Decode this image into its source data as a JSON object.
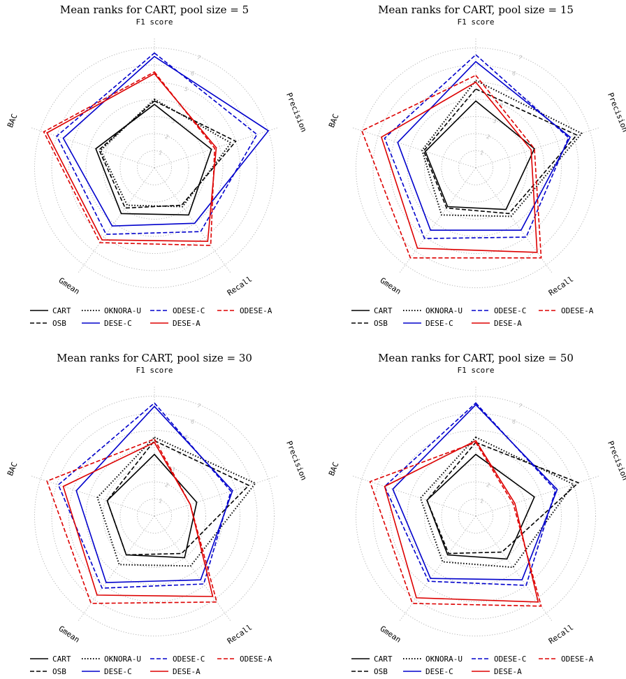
{
  "chart_data": [
    {
      "type": "radar",
      "title": "Mean ranks for CART, pool size = 5",
      "axes": [
        "F1 score",
        "Precision",
        "Recall",
        "Gmean",
        "BAC"
      ],
      "rlim": [
        0,
        7
      ],
      "rticks": [
        "1",
        "2",
        "3",
        "4",
        "5",
        "6",
        "7"
      ],
      "grid": true,
      "legend": "bottom",
      "series": [
        {
          "name": "CART",
          "color": "#000000",
          "style": "solid",
          "values": [
            3.7,
            3.5,
            3.4,
            3.3,
            3.6
          ]
        },
        {
          "name": "OSB",
          "color": "#000000",
          "style": "dashed",
          "values": [
            3.9,
            5.0,
            2.7,
            2.9,
            3.4
          ]
        },
        {
          "name": "OKNORA-U",
          "color": "#000000",
          "style": "dotted",
          "values": [
            4.0,
            4.7,
            2.8,
            2.7,
            3.3
          ]
        },
        {
          "name": "DESE-C",
          "color": "#0000cc",
          "style": "solid",
          "values": [
            6.5,
            7.0,
            4.0,
            4.2,
            5.6
          ]
        },
        {
          "name": "ODESE-C",
          "color": "#0000cc",
          "style": "dashed",
          "values": [
            6.7,
            6.3,
            4.6,
            4.8,
            6.0
          ]
        },
        {
          "name": "DESE-A",
          "color": "#dd0000",
          "style": "solid",
          "values": [
            5.5,
            3.8,
            5.3,
            5.2,
            6.6
          ]
        },
        {
          "name": "ODESE-A",
          "color": "#dd0000",
          "style": "dashed",
          "values": [
            5.6,
            3.7,
            5.6,
            5.4,
            6.8
          ]
        }
      ]
    },
    {
      "type": "radar",
      "title": "Mean ranks for CART, pool size = 15",
      "axes": [
        "F1 score",
        "Precision",
        "Recall",
        "Gmean",
        "BAC"
      ],
      "rlim": [
        0,
        7
      ],
      "rticks": [
        "1",
        "2",
        "3",
        "4",
        "5",
        "6",
        "7"
      ],
      "grid": true,
      "legend": "bottom",
      "series": [
        {
          "name": "CART",
          "color": "#000000",
          "style": "solid",
          "values": [
            3.9,
            3.6,
            3.0,
            2.8,
            3.1
          ]
        },
        {
          "name": "OSB",
          "color": "#000000",
          "style": "dashed",
          "values": [
            4.6,
            6.2,
            3.3,
            2.9,
            3.2
          ]
        },
        {
          "name": "OKNORA-U",
          "color": "#000000",
          "style": "dotted",
          "values": [
            5.1,
            6.5,
            3.5,
            3.4,
            3.3
          ]
        },
        {
          "name": "DESE-C",
          "color": "#0000cc",
          "style": "solid",
          "values": [
            6.2,
            5.8,
            4.5,
            4.5,
            4.8
          ]
        },
        {
          "name": "ODESE-C",
          "color": "#0000cc",
          "style": "dashed",
          "values": [
            6.6,
            5.7,
            5.0,
            5.1,
            5.6
          ]
        },
        {
          "name": "DESE-A",
          "color": "#dd0000",
          "style": "solid",
          "values": [
            5.0,
            3.4,
            6.1,
            5.8,
            5.8
          ]
        },
        {
          "name": "ODESE-A",
          "color": "#dd0000",
          "style": "dashed",
          "values": [
            5.4,
            3.6,
            6.5,
            6.5,
            7.0
          ]
        }
      ]
    },
    {
      "type": "radar",
      "title": "Mean ranks for CART, pool size = 30",
      "axes": [
        "F1 score",
        "Precision",
        "Recall",
        "Gmean",
        "BAC"
      ],
      "rlim": [
        0,
        7
      ],
      "rticks": [
        "1",
        "2",
        "3",
        "4",
        "5",
        "6",
        "7"
      ],
      "grid": true,
      "legend": "bottom",
      "series": [
        {
          "name": "CART",
          "color": "#000000",
          "style": "solid",
          "values": [
            3.6,
            2.6,
            3.0,
            2.8,
            2.9
          ]
        },
        {
          "name": "OSB",
          "color": "#000000",
          "style": "dashed",
          "values": [
            4.4,
            5.8,
            2.7,
            2.8,
            2.9
          ]
        },
        {
          "name": "OKNORA-U",
          "color": "#000000",
          "style": "dotted",
          "values": [
            4.6,
            6.2,
            3.6,
            3.5,
            3.5
          ]
        },
        {
          "name": "DESE-C",
          "color": "#0000cc",
          "style": "solid",
          "values": [
            6.4,
            4.8,
            4.6,
            4.8,
            4.8
          ]
        },
        {
          "name": "ODESE-C",
          "color": "#0000cc",
          "style": "dashed",
          "values": [
            6.6,
            4.7,
            4.9,
            5.2,
            5.9
          ]
        },
        {
          "name": "DESE-A",
          "color": "#dd0000",
          "style": "solid",
          "values": [
            4.3,
            2.2,
            5.8,
            5.7,
            5.6
          ]
        },
        {
          "name": "ODESE-A",
          "color": "#dd0000",
          "style": "dashed",
          "values": [
            4.5,
            2.2,
            6.2,
            6.3,
            6.6
          ]
        }
      ]
    },
    {
      "type": "radar",
      "title": "Mean ranks for CART, pool size = 50",
      "axes": [
        "F1 score",
        "Precision",
        "Recall",
        "Gmean",
        "BAC"
      ],
      "rlim": [
        0,
        7
      ],
      "rticks": [
        "1",
        "2",
        "3",
        "4",
        "5",
        "6",
        "7"
      ],
      "grid": true,
      "legend": "bottom",
      "series": [
        {
          "name": "CART",
          "color": "#000000",
          "style": "solid",
          "values": [
            3.6,
            3.6,
            3.1,
            2.8,
            3.0
          ]
        },
        {
          "name": "OSB",
          "color": "#000000",
          "style": "dashed",
          "values": [
            4.3,
            6.3,
            2.6,
            2.7,
            3.0
          ]
        },
        {
          "name": "OKNORA-U",
          "color": "#000000",
          "style": "dotted",
          "values": [
            4.6,
            6.0,
            3.7,
            3.3,
            3.4
          ]
        },
        {
          "name": "DESE-C",
          "color": "#0000cc",
          "style": "solid",
          "values": [
            6.5,
            5.0,
            4.6,
            4.5,
            5.1
          ]
        },
        {
          "name": "ODESE-C",
          "color": "#0000cc",
          "style": "dashed",
          "values": [
            6.6,
            4.9,
            5.0,
            4.7,
            5.6
          ]
        },
        {
          "name": "DESE-A",
          "color": "#dd0000",
          "style": "solid",
          "values": [
            4.4,
            2.4,
            6.2,
            5.9,
            5.6
          ]
        },
        {
          "name": "ODESE-A",
          "color": "#dd0000",
          "style": "dashed",
          "values": [
            4.3,
            2.3,
            6.5,
            6.3,
            6.5
          ]
        }
      ]
    }
  ]
}
